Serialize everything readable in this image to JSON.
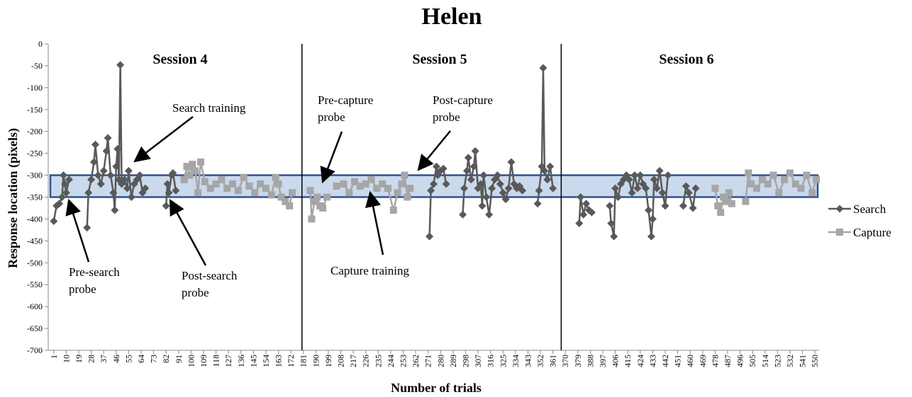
{
  "chart_data": {
    "type": "line",
    "title": "Helen",
    "x_label": "Number of trials",
    "y_label": "Response location (pixels)",
    "xlim": [
      -3,
      553
    ],
    "ylim": [
      -700,
      0
    ],
    "yticks": [
      0,
      -50,
      -100,
      -150,
      -200,
      -250,
      -300,
      -350,
      -400,
      -450,
      -500,
      -550,
      -600,
      -650,
      -700
    ],
    "xticks": [
      1,
      10,
      19,
      28,
      37,
      46,
      55,
      64,
      73,
      82,
      91,
      100,
      109,
      118,
      127,
      136,
      145,
      154,
      163,
      172,
      181,
      190,
      199,
      208,
      217,
      226,
      235,
      244,
      253,
      262,
      271,
      280,
      289,
      298,
      307,
      316,
      325,
      334,
      343,
      352,
      361,
      370,
      379,
      388,
      397,
      406,
      415,
      424,
      433,
      442,
      451,
      460,
      469,
      478,
      487,
      496,
      505,
      514,
      523,
      532,
      541,
      550
    ],
    "session_dividers": [
      180,
      367
    ],
    "band": [
      -350,
      -300
    ],
    "sessions": [
      "Session 4",
      "Session 5",
      "Session 6"
    ],
    "annotations": [
      [
        "Search training"
      ],
      [
        "Pre-search",
        "probe"
      ],
      [
        "Post-search",
        "probe"
      ],
      [
        "Pre-capture",
        "probe"
      ],
      [
        "Post-capture",
        "probe"
      ],
      [
        "Capture training"
      ]
    ],
    "series": [
      {
        "name": "Search",
        "color": "#595959",
        "marker": "diamond",
        "x": [
          1,
          3,
          5,
          7,
          8,
          9,
          10,
          12,
          null,
          25,
          26,
          28,
          30,
          31,
          33,
          35,
          37,
          39,
          40,
          42,
          44,
          45,
          46,
          47,
          48,
          49,
          50,
          52,
          54,
          55,
          57,
          59,
          61,
          63,
          65,
          67,
          null,
          82,
          83,
          84,
          86,
          87,
          89,
          null,
          272,
          273,
          275,
          277,
          278,
          280,
          282,
          284,
          null,
          296,
          297,
          299,
          300,
          302,
          304,
          305,
          307,
          309,
          310,
          311,
          313,
          315,
          317,
          319,
          321,
          323,
          325,
          327,
          329,
          331,
          333,
          335,
          337,
          339,
          null,
          350,
          351,
          353,
          354,
          355,
          357,
          359,
          361,
          null,
          380,
          381,
          383,
          385,
          387,
          389,
          null,
          402,
          403,
          405,
          406,
          408,
          410,
          412,
          414,
          416,
          418,
          420,
          422,
          424,
          426,
          428,
          430,
          432,
          433,
          434,
          436,
          438,
          440,
          442,
          444,
          null,
          455,
          457,
          459,
          462,
          464
        ],
        "values": [
          -405,
          -370,
          -365,
          -350,
          -300,
          -320,
          -340,
          -310,
          null,
          -420,
          -340,
          -310,
          -270,
          -230,
          -300,
          -320,
          -290,
          -245,
          -215,
          -300,
          -340,
          -380,
          -280,
          -240,
          -310,
          -48,
          -320,
          -310,
          -330,
          -290,
          -350,
          -320,
          -310,
          -300,
          -340,
          -330,
          null,
          -370,
          -320,
          -340,
          -300,
          -295,
          -335,
          null,
          -440,
          -335,
          -320,
          -280,
          -300,
          -290,
          -285,
          -320,
          null,
          -390,
          -330,
          -290,
          -260,
          -310,
          -280,
          -245,
          -330,
          -320,
          -370,
          -300,
          -350,
          -390,
          -330,
          -310,
          -300,
          -320,
          -340,
          -355,
          -330,
          -270,
          -320,
          -330,
          -325,
          -335,
          null,
          -365,
          -335,
          -280,
          -55,
          -290,
          -310,
          -280,
          -330,
          null,
          -410,
          -350,
          -390,
          -365,
          -380,
          -385,
          null,
          -370,
          -410,
          -440,
          -330,
          -350,
          -320,
          -310,
          -300,
          -310,
          -340,
          -300,
          -330,
          -300,
          -320,
          -330,
          -380,
          -440,
          -400,
          -310,
          -330,
          -290,
          -340,
          -370,
          -300,
          null,
          -370,
          -325,
          -340,
          -375,
          -330
        ]
      },
      {
        "name": "Capture",
        "color": "#a6a6a6",
        "marker": "square",
        "x": [
          95,
          97,
          99,
          101,
          103,
          105,
          107,
          110,
          114,
          118,
          122,
          126,
          130,
          134,
          138,
          142,
          146,
          150,
          154,
          158,
          161,
          163,
          165,
          168,
          171,
          173,
          null,
          186,
          187,
          189,
          191,
          193,
          195,
          198,
          null,
          205,
          210,
          214,
          218,
          222,
          226,
          230,
          234,
          238,
          242,
          246,
          249,
          252,
          254,
          256,
          258,
          null,
          478,
          480,
          482,
          484,
          486,
          488,
          490,
          null,
          500,
          502,
          504,
          508,
          512,
          516,
          520,
          524,
          528,
          532,
          536,
          540,
          544,
          548,
          551
        ],
        "values": [
          -310,
          -280,
          -300,
          -275,
          -290,
          -340,
          -270,
          -315,
          -330,
          -320,
          -310,
          -330,
          -320,
          -335,
          -305,
          -325,
          -340,
          -320,
          -330,
          -345,
          -305,
          -320,
          -350,
          -360,
          -370,
          -340,
          null,
          -335,
          -400,
          -360,
          -350,
          -370,
          -375,
          -350,
          null,
          -325,
          -320,
          -340,
          -315,
          -325,
          -320,
          -310,
          -330,
          -320,
          -330,
          -380,
          -340,
          -320,
          -300,
          -350,
          -330,
          null,
          -330,
          -370,
          -385,
          -350,
          -360,
          -340,
          -365,
          null,
          -360,
          -295,
          -320,
          -330,
          -310,
          -320,
          -300,
          -340,
          -310,
          -295,
          -320,
          -330,
          -300,
          -340,
          -310
        ]
      }
    ]
  }
}
